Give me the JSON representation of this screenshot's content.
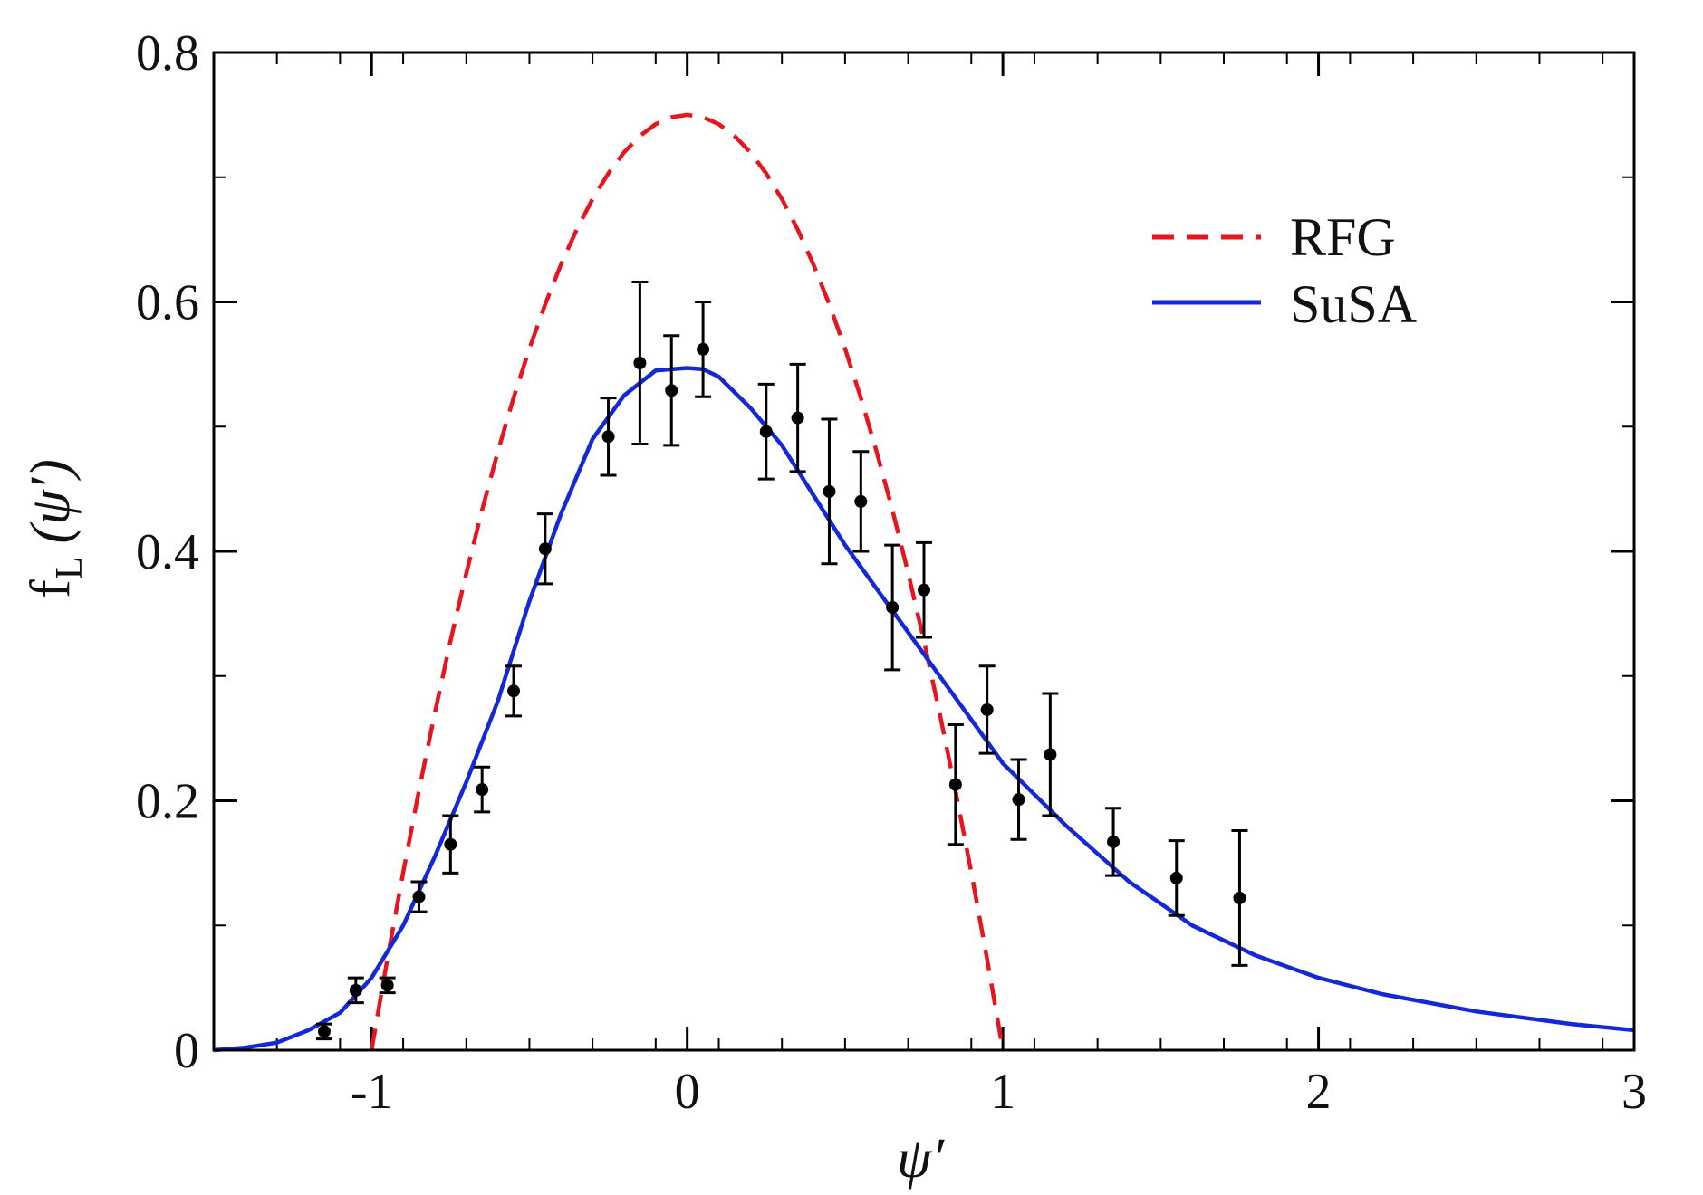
{
  "chart_data": {
    "type": "line",
    "title": "",
    "xlabel": "ψ′",
    "ylabel": "f_L (ψ′)",
    "ylabel_parts": {
      "main": "f",
      "sub": "L",
      "arg": "(ψ′)"
    },
    "xlim": [
      -1.5,
      3
    ],
    "ylim": [
      0,
      0.8
    ],
    "x_ticks": [
      {
        "value": -1,
        "label": "-1"
      },
      {
        "value": 0,
        "label": "0"
      },
      {
        "value": 1,
        "label": "1"
      },
      {
        "value": 2,
        "label": "2"
      },
      {
        "value": 3,
        "label": "3"
      }
    ],
    "y_ticks": [
      {
        "value": 0,
        "label": "0"
      },
      {
        "value": 0.2,
        "label": "0.2"
      },
      {
        "value": 0.4,
        "label": "0.4"
      },
      {
        "value": 0.6,
        "label": "0.6"
      },
      {
        "value": 0.8,
        "label": "0.8"
      }
    ],
    "x_minor_step": 0.2,
    "y_minor_step": 0.1,
    "grid": false,
    "legend": {
      "placement": "top-right",
      "entries": [
        {
          "label": "RFG",
          "color": "#e8141e",
          "style": "dashed"
        },
        {
          "label": "SuSA",
          "color": "#1328d6",
          "style": "solid"
        }
      ]
    },
    "series": [
      {
        "name": "RFG",
        "kind": "line",
        "style": "dashed",
        "color": "#e8141e",
        "x": [
          -1.0,
          -0.95,
          -0.9,
          -0.85,
          -0.8,
          -0.75,
          -0.7,
          -0.65,
          -0.6,
          -0.55,
          -0.5,
          -0.45,
          -0.4,
          -0.35,
          -0.3,
          -0.25,
          -0.2,
          -0.15,
          -0.1,
          -0.05,
          0.0,
          0.05,
          0.1,
          0.15,
          0.2,
          0.25,
          0.3,
          0.35,
          0.4,
          0.45,
          0.5,
          0.55,
          0.6,
          0.65,
          0.7,
          0.75,
          0.8,
          0.85,
          0.9,
          0.95,
          1.0
        ],
        "y": [
          0.0,
          0.073,
          0.1425,
          0.2081,
          0.27,
          0.3281,
          0.3825,
          0.4331,
          0.48,
          0.5231,
          0.5625,
          0.5981,
          0.63,
          0.6581,
          0.6825,
          0.7031,
          0.72,
          0.7331,
          0.7425,
          0.7481,
          0.75,
          0.7481,
          0.7425,
          0.7331,
          0.72,
          0.7031,
          0.6825,
          0.6581,
          0.63,
          0.5981,
          0.5625,
          0.5231,
          0.48,
          0.4331,
          0.3825,
          0.3281,
          0.27,
          0.2081,
          0.1425,
          0.073,
          0.0
        ]
      },
      {
        "name": "SuSA",
        "kind": "line",
        "style": "solid",
        "color": "#1328d6",
        "x": [
          -1.5,
          -1.4,
          -1.3,
          -1.2,
          -1.1,
          -1.0,
          -0.9,
          -0.8,
          -0.7,
          -0.6,
          -0.5,
          -0.4,
          -0.3,
          -0.2,
          -0.1,
          0.0,
          0.05,
          0.1,
          0.2,
          0.3,
          0.4,
          0.5,
          0.6,
          0.7,
          0.8,
          0.9,
          1.0,
          1.2,
          1.4,
          1.6,
          1.8,
          2.0,
          2.2,
          2.5,
          2.8,
          3.0
        ],
        "y": [
          0.0,
          0.002,
          0.006,
          0.016,
          0.03,
          0.058,
          0.1,
          0.155,
          0.215,
          0.28,
          0.36,
          0.43,
          0.49,
          0.525,
          0.545,
          0.547,
          0.546,
          0.54,
          0.515,
          0.485,
          0.445,
          0.405,
          0.37,
          0.335,
          0.3,
          0.265,
          0.23,
          0.18,
          0.135,
          0.1,
          0.076,
          0.058,
          0.045,
          0.031,
          0.021,
          0.016
        ]
      },
      {
        "name": "data",
        "kind": "errorbar",
        "color": "#000000",
        "points": [
          {
            "x": -1.15,
            "y": 0.015,
            "err": 0.006
          },
          {
            "x": -1.05,
            "y": 0.048,
            "err": 0.01
          },
          {
            "x": -0.95,
            "y": 0.052,
            "err": 0.006
          },
          {
            "x": -0.85,
            "y": 0.123,
            "err": 0.012
          },
          {
            "x": -0.75,
            "y": 0.165,
            "err": 0.023
          },
          {
            "x": -0.65,
            "y": 0.209,
            "err": 0.018
          },
          {
            "x": -0.55,
            "y": 0.288,
            "err": 0.02
          },
          {
            "x": -0.45,
            "y": 0.402,
            "err": 0.028
          },
          {
            "x": -0.25,
            "y": 0.492,
            "err": 0.031
          },
          {
            "x": -0.15,
            "y": 0.551,
            "err": 0.065
          },
          {
            "x": -0.05,
            "y": 0.529,
            "err": 0.044
          },
          {
            "x": 0.05,
            "y": 0.562,
            "err": 0.038
          },
          {
            "x": 0.25,
            "y": 0.496,
            "err": 0.038
          },
          {
            "x": 0.35,
            "y": 0.507,
            "err": 0.043
          },
          {
            "x": 0.45,
            "y": 0.448,
            "err": 0.058
          },
          {
            "x": 0.55,
            "y": 0.44,
            "err": 0.04
          },
          {
            "x": 0.65,
            "y": 0.355,
            "err": 0.05
          },
          {
            "x": 0.75,
            "y": 0.369,
            "err": 0.038
          },
          {
            "x": 0.85,
            "y": 0.213,
            "err": 0.048
          },
          {
            "x": 0.95,
            "y": 0.273,
            "err": 0.035
          },
          {
            "x": 1.05,
            "y": 0.201,
            "err": 0.032
          },
          {
            "x": 1.15,
            "y": 0.237,
            "err": 0.049
          },
          {
            "x": 1.35,
            "y": 0.167,
            "err": 0.027
          },
          {
            "x": 1.55,
            "y": 0.138,
            "err": 0.03
          },
          {
            "x": 1.75,
            "y": 0.122,
            "err": 0.054
          }
        ]
      }
    ]
  }
}
